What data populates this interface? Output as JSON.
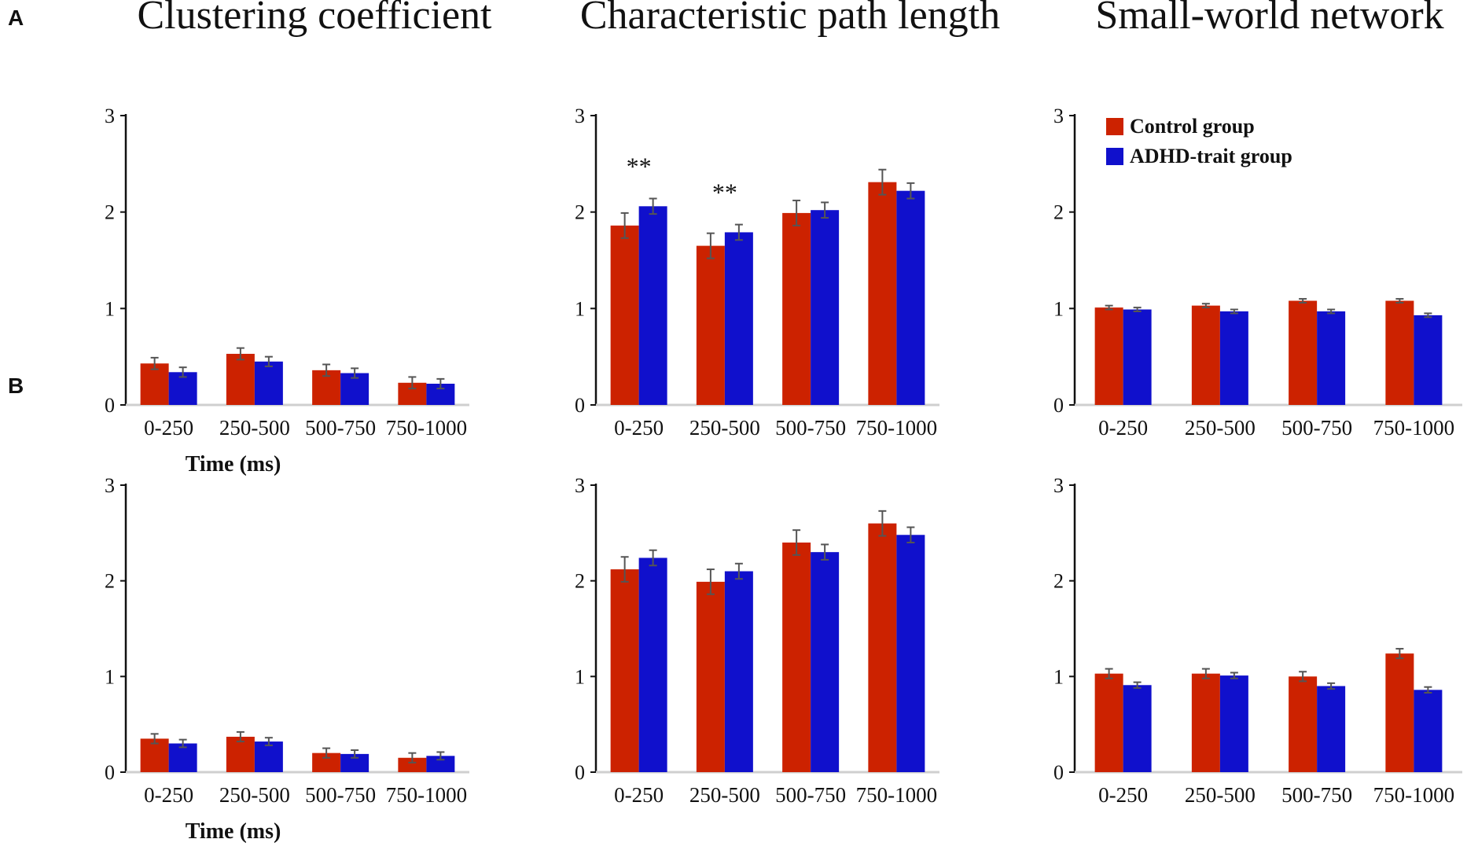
{
  "column_titles": [
    "Clustering coefficient",
    "Characteristic path length",
    "Small-world network"
  ],
  "row_labels": [
    "A",
    "B"
  ],
  "legend": {
    "items": [
      {
        "label": "Control group",
        "color": "#cc2200"
      },
      {
        "label": "ADHD-trait group",
        "color": "#1010cc"
      }
    ]
  },
  "chart_data": [
    {
      "type": "bar",
      "row": "A",
      "title": "Clustering coefficient",
      "categories": [
        "0-250",
        "250-500",
        "500-750",
        "750-1000"
      ],
      "series": [
        {
          "name": "Control group",
          "values": [
            0.43,
            0.53,
            0.36,
            0.23
          ],
          "errors": [
            0.06,
            0.06,
            0.06,
            0.06
          ]
        },
        {
          "name": "ADHD-trait group",
          "values": [
            0.34,
            0.45,
            0.33,
            0.22
          ],
          "errors": [
            0.05,
            0.05,
            0.05,
            0.05
          ]
        }
      ],
      "xlabel": "Time (ms)",
      "ylabel": "",
      "ylim": [
        0,
        3
      ],
      "yticks": [
        0,
        1,
        2,
        3
      ],
      "annotations": []
    },
    {
      "type": "bar",
      "row": "A",
      "title": "Characteristic path length",
      "categories": [
        "0-250",
        "250-500",
        "500-750",
        "750-1000"
      ],
      "series": [
        {
          "name": "Control group",
          "values": [
            1.86,
            1.65,
            1.99,
            2.31
          ],
          "errors": [
            0.13,
            0.13,
            0.13,
            0.13
          ]
        },
        {
          "name": "ADHD-trait group",
          "values": [
            2.06,
            1.79,
            2.02,
            2.22
          ],
          "errors": [
            0.08,
            0.08,
            0.08,
            0.08
          ]
        }
      ],
      "xlabel": "",
      "ylabel": "",
      "ylim": [
        0,
        3
      ],
      "yticks": [
        0,
        1,
        2,
        3
      ],
      "annotations": [
        {
          "category": "0-250",
          "text": "**"
        },
        {
          "category": "250-500",
          "text": "**"
        }
      ]
    },
    {
      "type": "bar",
      "row": "A",
      "title": "Small-world network",
      "categories": [
        "0-250",
        "250-500",
        "500-750",
        "750-1000"
      ],
      "series": [
        {
          "name": "Control group",
          "values": [
            1.01,
            1.03,
            1.08,
            1.08
          ],
          "errors": [
            0.02,
            0.02,
            0.02,
            0.02
          ]
        },
        {
          "name": "ADHD-trait group",
          "values": [
            0.99,
            0.97,
            0.97,
            0.93
          ],
          "errors": [
            0.02,
            0.02,
            0.02,
            0.02
          ]
        }
      ],
      "xlabel": "",
      "ylabel": "",
      "ylim": [
        0,
        3
      ],
      "yticks": [
        0,
        1,
        2,
        3
      ],
      "annotations": [],
      "show_legend": true
    },
    {
      "type": "bar",
      "row": "B",
      "title": "Clustering coefficient",
      "categories": [
        "0-250",
        "250-500",
        "500-750",
        "750-1000"
      ],
      "series": [
        {
          "name": "Control group",
          "values": [
            0.35,
            0.37,
            0.2,
            0.15
          ],
          "errors": [
            0.05,
            0.05,
            0.05,
            0.05
          ]
        },
        {
          "name": "ADHD-trait group",
          "values": [
            0.3,
            0.32,
            0.19,
            0.17
          ],
          "errors": [
            0.04,
            0.04,
            0.04,
            0.04
          ]
        }
      ],
      "xlabel": "Time (ms)",
      "ylabel": "",
      "ylim": [
        0,
        3
      ],
      "yticks": [
        0,
        1,
        2,
        3
      ],
      "annotations": []
    },
    {
      "type": "bar",
      "row": "B",
      "title": "Characteristic path length",
      "categories": [
        "0-250",
        "250-500",
        "500-750",
        "750-1000"
      ],
      "series": [
        {
          "name": "Control group",
          "values": [
            2.12,
            1.99,
            2.4,
            2.6
          ],
          "errors": [
            0.13,
            0.13,
            0.13,
            0.13
          ]
        },
        {
          "name": "ADHD-trait group",
          "values": [
            2.24,
            2.1,
            2.3,
            2.48
          ],
          "errors": [
            0.08,
            0.08,
            0.08,
            0.08
          ]
        }
      ],
      "xlabel": "",
      "ylabel": "",
      "ylim": [
        0,
        3
      ],
      "yticks": [
        0,
        1,
        2,
        3
      ],
      "annotations": []
    },
    {
      "type": "bar",
      "row": "B",
      "title": "Small-world network",
      "categories": [
        "0-250",
        "250-500",
        "500-750",
        "750-1000"
      ],
      "series": [
        {
          "name": "Control group",
          "values": [
            1.03,
            1.03,
            1.0,
            1.24
          ],
          "errors": [
            0.05,
            0.05,
            0.05,
            0.05
          ]
        },
        {
          "name": "ADHD-trait group",
          "values": [
            0.91,
            1.01,
            0.9,
            0.86
          ],
          "errors": [
            0.03,
            0.03,
            0.03,
            0.03
          ]
        }
      ],
      "xlabel": "",
      "ylabel": "",
      "ylim": [
        0,
        3
      ],
      "yticks": [
        0,
        1,
        2,
        3
      ],
      "annotations": []
    }
  ]
}
